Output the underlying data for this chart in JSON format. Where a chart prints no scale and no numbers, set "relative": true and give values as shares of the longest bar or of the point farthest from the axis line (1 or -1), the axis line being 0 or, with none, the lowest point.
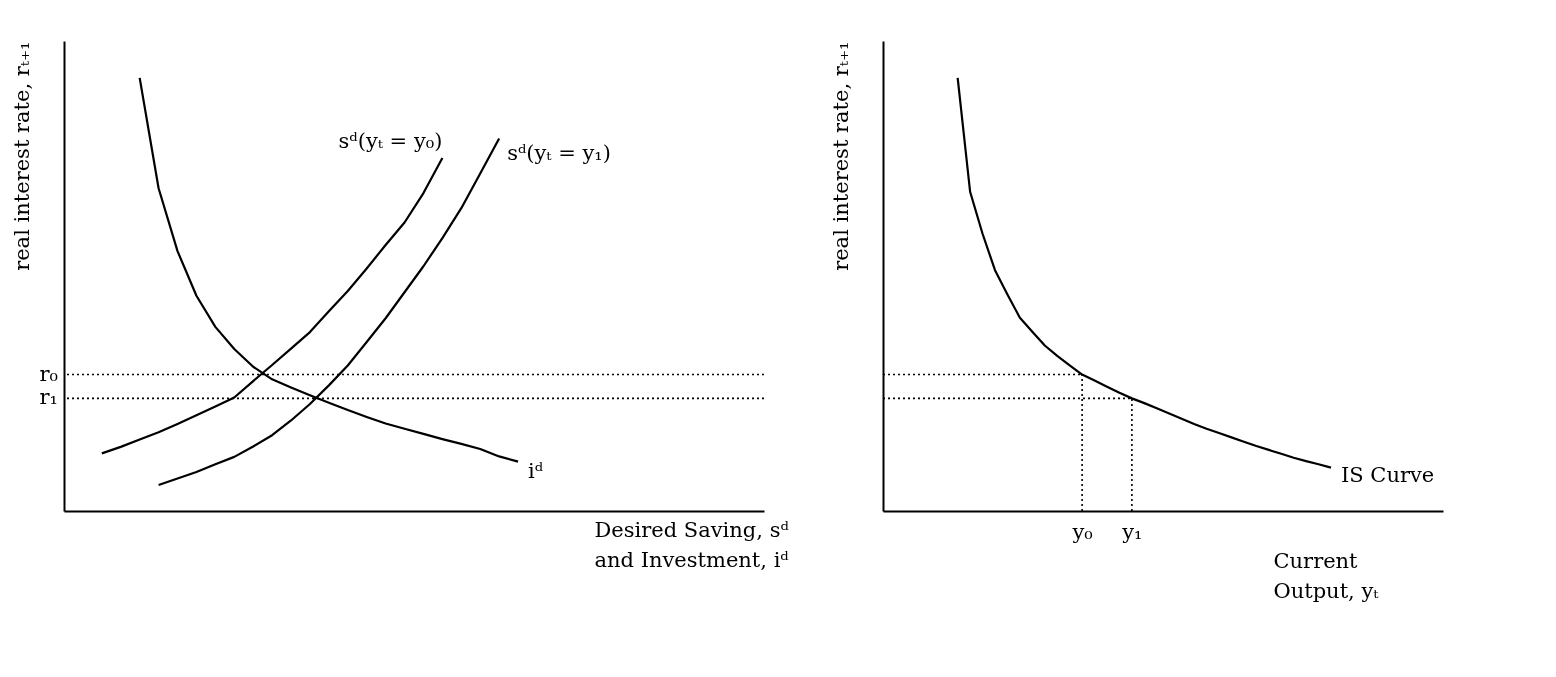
{
  "chart_data": [
    {
      "type": "line",
      "relative": true,
      "ylabel": "real interest rate,  rₜ₊₁",
      "xlabel": "Desired Saving, sᵈ\nand Investment, iᵈ",
      "categories": [
        null,
        null,
        null,
        null,
        null,
        null,
        null,
        null,
        null,
        null,
        null,
        null,
        null,
        null,
        null,
        null,
        null,
        null,
        null,
        null,
        null,
        null,
        null,
        null,
        null,
        null,
        null,
        null,
        null,
        null,
        null,
        null,
        null,
        null,
        null,
        null,
        null,
        null
      ],
      "series": [
        {
          "name": "sᵈ(yₜ = y₀)",
          "color": "#000000",
          "values": [
            null,
            null,
            0.133,
            0.148,
            0.165,
            0.182,
            0.201,
            0.221,
            0.241,
            0.262,
            0.3,
            0.337,
            0.375,
            0.413,
            0.461,
            0.508,
            0.56,
            0.614,
            0.666,
            0.734,
            0.815,
            null,
            null,
            null,
            null,
            null,
            null,
            null,
            null,
            null,
            null,
            null,
            null,
            null,
            null,
            null,
            null,
            null
          ]
        },
        {
          "name": "sᵈ(yₜ = y₁)",
          "color": "#000000",
          "values": [
            null,
            null,
            null,
            null,
            null,
            0.06,
            0.075,
            0.09,
            0.108,
            0.125,
            0.149,
            0.175,
            0.209,
            0.247,
            0.29,
            0.336,
            0.39,
            0.445,
            0.505,
            0.565,
            0.63,
            0.699,
            0.779,
            0.86,
            null,
            null,
            null,
            null,
            null,
            null,
            null,
            null,
            null,
            null,
            null,
            null,
            null,
            null
          ]
        },
        {
          "name": "iᵈ",
          "color": "#000000",
          "values": [
            null,
            null,
            null,
            null,
            1.0,
            0.745,
            0.6,
            0.497,
            0.425,
            0.374,
            0.333,
            0.304,
            0.285,
            0.267,
            0.25,
            0.233,
            0.217,
            0.202,
            0.19,
            0.178,
            0.166,
            0.155,
            0.143,
            0.126,
            0.114,
            null,
            null,
            null,
            null,
            null,
            null,
            null,
            null,
            null,
            null,
            null,
            null,
            null
          ]
        }
      ],
      "ref_lines": [
        {
          "axis": "y",
          "value": 0.315,
          "label": "r₀",
          "line_style": "dotted",
          "color": "#000000"
        },
        {
          "axis": "y",
          "value": 0.26,
          "label": "r₁",
          "line_style": "dotted",
          "color": "#000000"
        }
      ]
    },
    {
      "type": "line",
      "relative": true,
      "ylabel": "real interest rate, rₜ₊₁",
      "xlabel": "Current\nOutput, yₜ",
      "categories": [
        null,
        null,
        null,
        null,
        null,
        null,
        null,
        null,
        null,
        null,
        null,
        null,
        null,
        null,
        null,
        null,
        "y₀",
        null,
        null,
        null,
        "y₁",
        null,
        null,
        null,
        null,
        null,
        null,
        null,
        null,
        null,
        null,
        null,
        null,
        null,
        null,
        null,
        null,
        null,
        null,
        null,
        null,
        null,
        null,
        null,
        null,
        null
      ],
      "series": [
        {
          "name": "IS Curve",
          "color": "#000000",
          "values": [
            null,
            null,
            null,
            null,
            null,
            null,
            1.0,
            0.737,
            0.64,
            0.556,
            0.5,
            0.446,
            0.414,
            0.382,
            0.358,
            0.336,
            0.315,
            0.301,
            0.287,
            0.273,
            0.26,
            0.249,
            0.237,
            0.225,
            0.213,
            0.201,
            0.19,
            0.18,
            0.17,
            0.16,
            0.15,
            0.141,
            0.132,
            0.123,
            0.115,
            0.108,
            0.1,
            null,
            null,
            null,
            null,
            null,
            null,
            null,
            null,
            null
          ]
        },
        {
          "color": "#000000",
          "line_style": "dotted",
          "values": [
            0.315,
            0.315,
            0.315,
            0.315,
            0.315,
            0.315,
            0.315,
            0.315,
            0.315,
            0.315,
            0.315,
            0.315,
            0.315,
            0.315,
            0.315,
            0.315,
            0.315,
            null,
            null,
            null,
            null,
            null,
            null,
            null,
            null,
            null,
            null,
            null,
            null,
            null,
            null,
            null,
            null,
            null,
            null,
            null,
            null,
            null,
            null,
            null,
            null,
            null,
            null,
            null,
            null,
            null
          ]
        },
        {
          "color": "#000000",
          "line_style": "dotted",
          "values": [
            0.26,
            0.26,
            0.26,
            0.26,
            0.26,
            0.26,
            0.26,
            0.26,
            0.26,
            0.26,
            0.26,
            0.26,
            0.26,
            0.26,
            0.26,
            0.26,
            0.26,
            0.26,
            0.26,
            0.26,
            0.26,
            null,
            null,
            null,
            null,
            null,
            null,
            null,
            null,
            null,
            null,
            null,
            null,
            null,
            null,
            null,
            null,
            null,
            null,
            null,
            null,
            null,
            null,
            null,
            null,
            null
          ]
        }
      ],
      "ref_lines": [
        {
          "axis": "x",
          "value": "y₀",
          "line_style": "dotted",
          "color": "#000000"
        },
        {
          "axis": "x",
          "value": "y₁",
          "line_style": "dotted",
          "color": "#000000"
        }
      ]
    }
  ]
}
